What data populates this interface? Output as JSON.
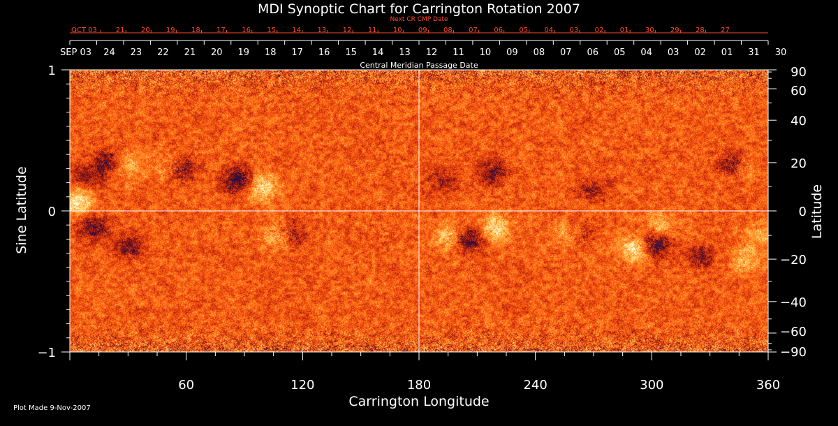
{
  "title": "MDI Synoptic Chart for Carrington Rotation 2007",
  "footer": "Plot Made  9-Nov-2007",
  "chart_data": {
    "type": "heatmap",
    "title": "MDI Synoptic Chart for Carrington Rotation 2007",
    "xlabel": "Carrington Longitude",
    "ylabel_left": "Sine Latitude",
    "ylabel_right": "Latitude",
    "xlim": [
      0,
      360
    ],
    "ylim": [
      -1,
      1
    ],
    "x_ticks": [
      "60",
      "120",
      "180",
      "240",
      "300",
      "360"
    ],
    "x_tick_values": [
      60,
      120,
      180,
      240,
      300,
      360
    ],
    "y_left_ticks": [
      "1",
      "0",
      "−1"
    ],
    "y_left_tick_values": [
      1,
      0,
      -1
    ],
    "y_right_ticks": [
      "90",
      "60",
      "40",
      "20",
      "0",
      "−20",
      "−40",
      "−60",
      "−90"
    ],
    "y_right_tick_values": [
      90,
      60,
      40,
      20,
      0,
      -20,
      -40,
      -60,
      -90
    ],
    "cmp_axis_label": "Central Meridian Passage Date",
    "cmp_dates": [
      "SEP 03",
      "24",
      "23",
      "22",
      "21",
      "20",
      "19",
      "18",
      "17",
      "16",
      "15",
      "14",
      "13",
      "12",
      "11",
      "10",
      "09",
      "08",
      "07",
      "06",
      "05",
      "04",
      "03",
      "02",
      "01",
      "31",
      "30"
    ],
    "next_cr_label": "Next CR CMP Date",
    "next_dates": [
      "OCT 03",
      "21",
      "20",
      "19",
      "18",
      "17",
      "16",
      "15",
      "14",
      "13",
      "12",
      "11",
      "10",
      "09",
      "08",
      "07",
      "06",
      "05",
      "04",
      "03",
      "02",
      "01",
      "30",
      "29",
      "28",
      "27"
    ],
    "colormap": {
      "negative": "#1a1050",
      "background": "#ff5a10",
      "positive": "#ffffe0"
    },
    "active_regions": [
      {
        "lon": 20,
        "sinlat": 0.35,
        "polarity": "negative",
        "strength": 0.7
      },
      {
        "lon": 30,
        "sinlat": 0.33,
        "polarity": "positive",
        "strength": 0.6
      },
      {
        "lon": 57,
        "sinlat": 0.3,
        "polarity": "negative",
        "strength": 0.9
      },
      {
        "lon": 52,
        "sinlat": 0.31,
        "polarity": "positive",
        "strength": 0.6
      },
      {
        "lon": 87,
        "sinlat": 0.22,
        "polarity": "negative",
        "strength": 1.0
      },
      {
        "lon": 99,
        "sinlat": 0.17,
        "polarity": "positive",
        "strength": 0.9
      },
      {
        "lon": 4,
        "sinlat": 0.06,
        "polarity": "positive",
        "strength": 1.0
      },
      {
        "lon": 12,
        "sinlat": -0.12,
        "polarity": "negative",
        "strength": 0.8
      },
      {
        "lon": 31,
        "sinlat": -0.25,
        "polarity": "negative",
        "strength": 0.7
      },
      {
        "lon": 108,
        "sinlat": -0.17,
        "polarity": "positive",
        "strength": 0.9
      },
      {
        "lon": 113,
        "sinlat": -0.16,
        "polarity": "negative",
        "strength": 0.8
      },
      {
        "lon": 10,
        "sinlat": 0.25,
        "polarity": "negative",
        "strength": 0.6
      },
      {
        "lon": 192,
        "sinlat": 0.22,
        "polarity": "negative",
        "strength": 0.5
      },
      {
        "lon": 218,
        "sinlat": 0.28,
        "polarity": "negative",
        "strength": 0.7
      },
      {
        "lon": 205,
        "sinlat": -0.2,
        "polarity": "negative",
        "strength": 1.0
      },
      {
        "lon": 196,
        "sinlat": -0.18,
        "polarity": "positive",
        "strength": 0.8
      },
      {
        "lon": 219,
        "sinlat": -0.12,
        "polarity": "positive",
        "strength": 0.9
      },
      {
        "lon": 258,
        "sinlat": -0.17,
        "polarity": "positive",
        "strength": 0.7
      },
      {
        "lon": 262,
        "sinlat": -0.17,
        "polarity": "negative",
        "strength": 0.6
      },
      {
        "lon": 291,
        "sinlat": -0.27,
        "polarity": "positive",
        "strength": 1.0
      },
      {
        "lon": 302,
        "sinlat": -0.24,
        "polarity": "negative",
        "strength": 1.0
      },
      {
        "lon": 305,
        "sinlat": -0.1,
        "polarity": "positive",
        "strength": 0.6
      },
      {
        "lon": 342,
        "sinlat": 0.33,
        "polarity": "negative",
        "strength": 0.9
      },
      {
        "lon": 346,
        "sinlat": 0.32,
        "polarity": "positive",
        "strength": 0.6
      },
      {
        "lon": 349,
        "sinlat": -0.35,
        "polarity": "positive",
        "strength": 0.6
      },
      {
        "lon": 356,
        "sinlat": -0.17,
        "polarity": "positive",
        "strength": 0.5
      },
      {
        "lon": 270,
        "sinlat": 0.15,
        "polarity": "negative",
        "strength": 0.5
      },
      {
        "lon": 325,
        "sinlat": -0.32,
        "polarity": "negative",
        "strength": 0.6
      }
    ]
  }
}
